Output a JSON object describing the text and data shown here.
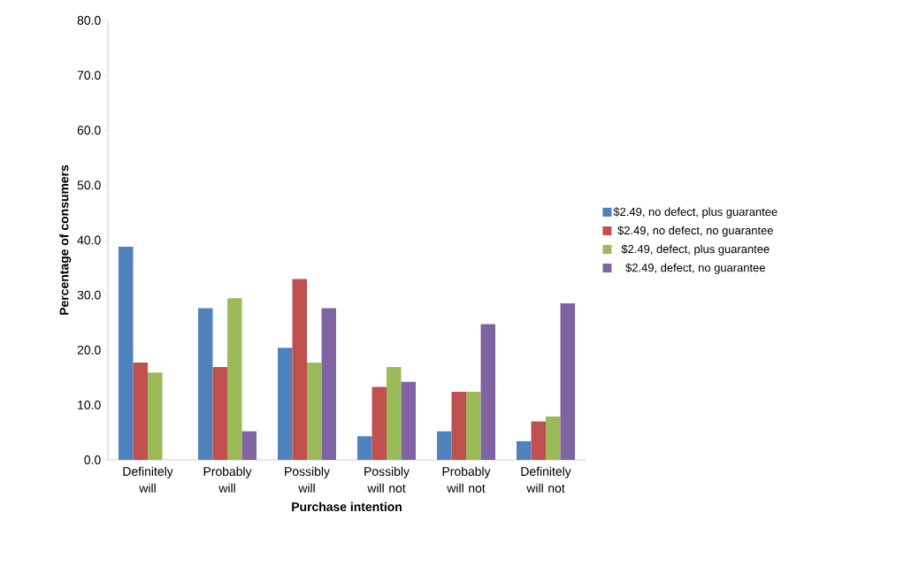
{
  "chart_data": {
    "type": "bar",
    "xlabel": "Purchase intention",
    "ylabel": "Percentage of consumers",
    "categories": [
      "Definitely will",
      "Probably will",
      "Possibly will",
      "Possibly will not",
      "Probably will not",
      "Definitely will not"
    ],
    "series": [
      {
        "name": "$2.49, no defect,  plus guarantee",
        "color": "#4f81bd",
        "values": [
          38.8,
          27.6,
          20.4,
          4.3,
          5.2,
          3.4
        ]
      },
      {
        "name": "$2.49, no defect, no guarantee",
        "color": "#c0504d",
        "values": [
          17.7,
          16.9,
          32.9,
          13.3,
          12.4,
          7.0
        ]
      },
      {
        "name": "$2.49, defect, plus guarantee",
        "color": "#9bbb59",
        "values": [
          15.9,
          29.4,
          17.7,
          16.9,
          12.4,
          7.9
        ]
      },
      {
        "name": "$2.49, defect, no guarantee",
        "color": "#8064a2",
        "values": [
          0,
          5.2,
          27.6,
          14.2,
          24.7,
          28.5
        ]
      }
    ],
    "ylim": [
      0,
      80
    ],
    "yticks": [
      {
        "value": 0,
        "label": "0.0"
      },
      {
        "value": 10,
        "label": "10.0"
      },
      {
        "value": 20,
        "label": "20.0"
      },
      {
        "value": 30,
        "label": "30.0"
      },
      {
        "value": 40,
        "label": "40.0"
      },
      {
        "value": 50,
        "label": "50.0"
      },
      {
        "value": 60,
        "label": "60.0"
      },
      {
        "value": 70,
        "label": "70.0"
      },
      {
        "value": 80,
        "label": "80.0"
      }
    ],
    "grid": false,
    "legend": "right"
  }
}
